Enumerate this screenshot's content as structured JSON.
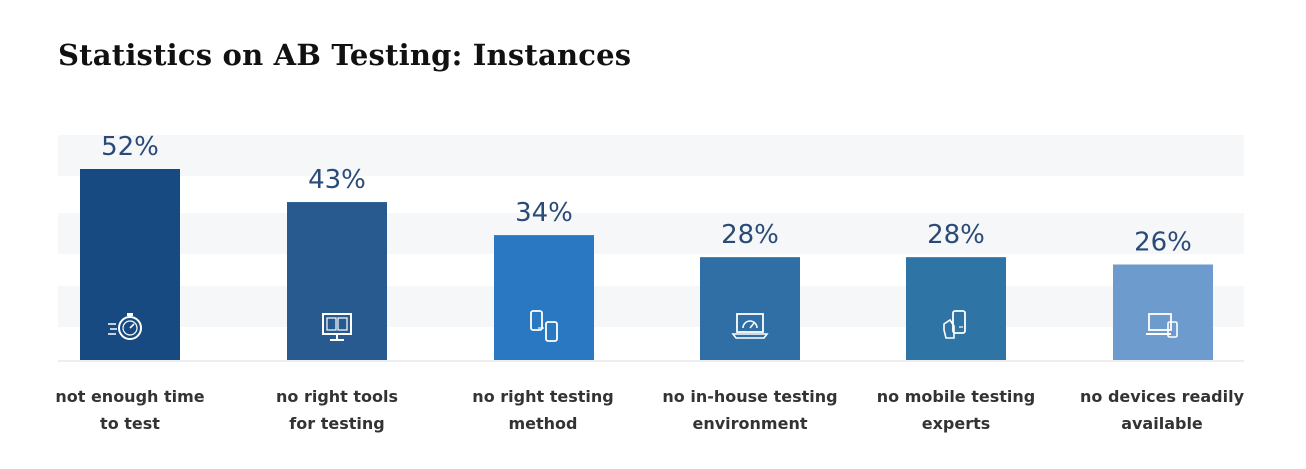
{
  "page": {
    "title": "Statistics on AB Testing: Instances"
  },
  "chart_data": {
    "type": "bar",
    "categories": [
      [
        "not enough time",
        "to test"
      ],
      [
        "no right tools",
        "for testing"
      ],
      [
        "no right testing",
        "method"
      ],
      [
        "no in-house testing",
        "environment"
      ],
      [
        "no mobile testing",
        "experts"
      ],
      [
        "no devices readily",
        "available"
      ]
    ],
    "values": [
      52,
      43,
      34,
      28,
      28,
      26
    ],
    "value_labels": [
      "52%",
      "43%",
      "34%",
      "28%",
      "28%",
      "26%"
    ],
    "bar_colors": [
      "#164a80",
      "#285a90",
      "#2b78c2",
      "#2f6fa6",
      "#2e74a5",
      "#6d9bcd"
    ],
    "icons": [
      "stopwatch-icon",
      "ab-monitor-icon",
      "phone-tablet-icon",
      "laptop-gauge-icon",
      "mobile-hand-icon",
      "devices-icon"
    ],
    "ylim": [
      0,
      55
    ],
    "grid": "alternating-bands",
    "title": "Statistics on AB Testing: Instances",
    "xlabel": "",
    "ylabel": ""
  }
}
